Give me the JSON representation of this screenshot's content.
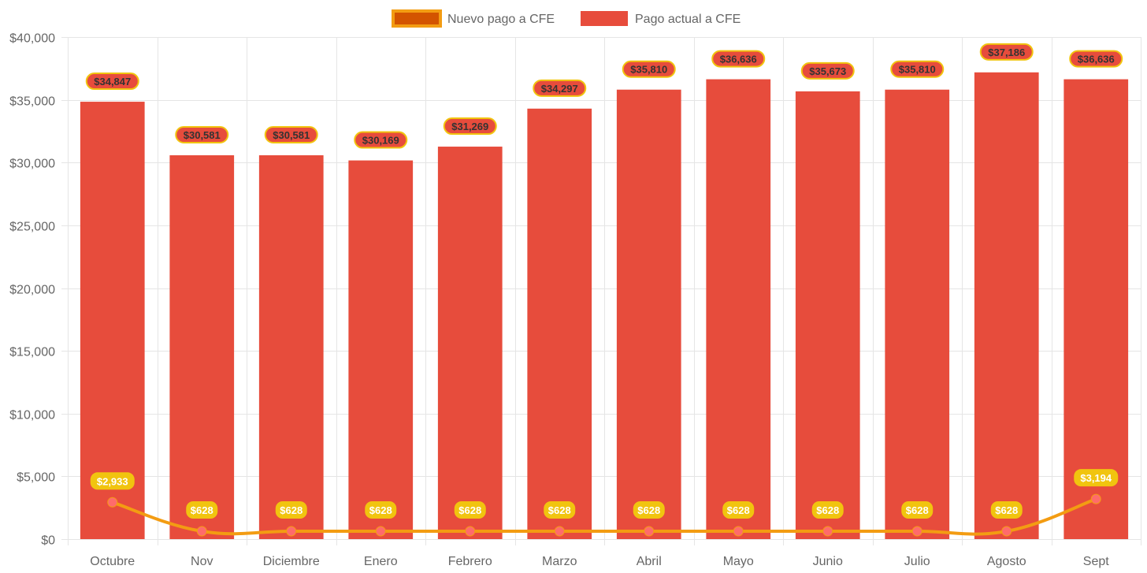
{
  "chart_data": {
    "type": "bar",
    "title": "",
    "xlabel": "",
    "ylabel": "",
    "ylim": [
      0,
      40000
    ],
    "y_ticks": [
      0,
      5000,
      10000,
      15000,
      20000,
      25000,
      30000,
      35000,
      40000
    ],
    "y_tick_labels": [
      "$0",
      "$5,000",
      "$10,000",
      "$15,000",
      "$20,000",
      "$25,000",
      "$30,000",
      "$35,000",
      "$40,000"
    ],
    "grid": true,
    "legend_position": "top-center",
    "categories": [
      "Octubre",
      "Nov",
      "Diciembre",
      "Enero",
      "Febrero",
      "Marzo",
      "Abril",
      "Mayo",
      "Junio",
      "Julio",
      "Agosto",
      "Sept"
    ],
    "series": [
      {
        "name": "Nuevo pago a CFE",
        "type": "line",
        "color": "#f39c12",
        "legend_fill": "#d35400",
        "point_color": "#ff6b6b",
        "label_bg": "#f1c40f",
        "values": [
          2933,
          628,
          628,
          628,
          628,
          628,
          628,
          628,
          628,
          628,
          628,
          3194
        ],
        "labels": [
          "$2,933",
          "$628",
          "$628",
          "$628",
          "$628",
          "$628",
          "$628",
          "$628",
          "$628",
          "$628",
          "$628",
          "$3,194"
        ]
      },
      {
        "name": "Pago actual a CFE",
        "type": "bar",
        "color": "#e74c3c",
        "label_border": "#f1c40f",
        "values": [
          34847,
          30581,
          30581,
          30169,
          31269,
          34297,
          35810,
          36636,
          35673,
          35810,
          37186,
          36636
        ],
        "labels": [
          "$34,847",
          "$30,581",
          "$30,581",
          "$30,169",
          "$31,269",
          "$34,297",
          "$35,810",
          "$36,636",
          "$35,673",
          "$35,810",
          "$37,186",
          "$36,636"
        ]
      }
    ]
  }
}
